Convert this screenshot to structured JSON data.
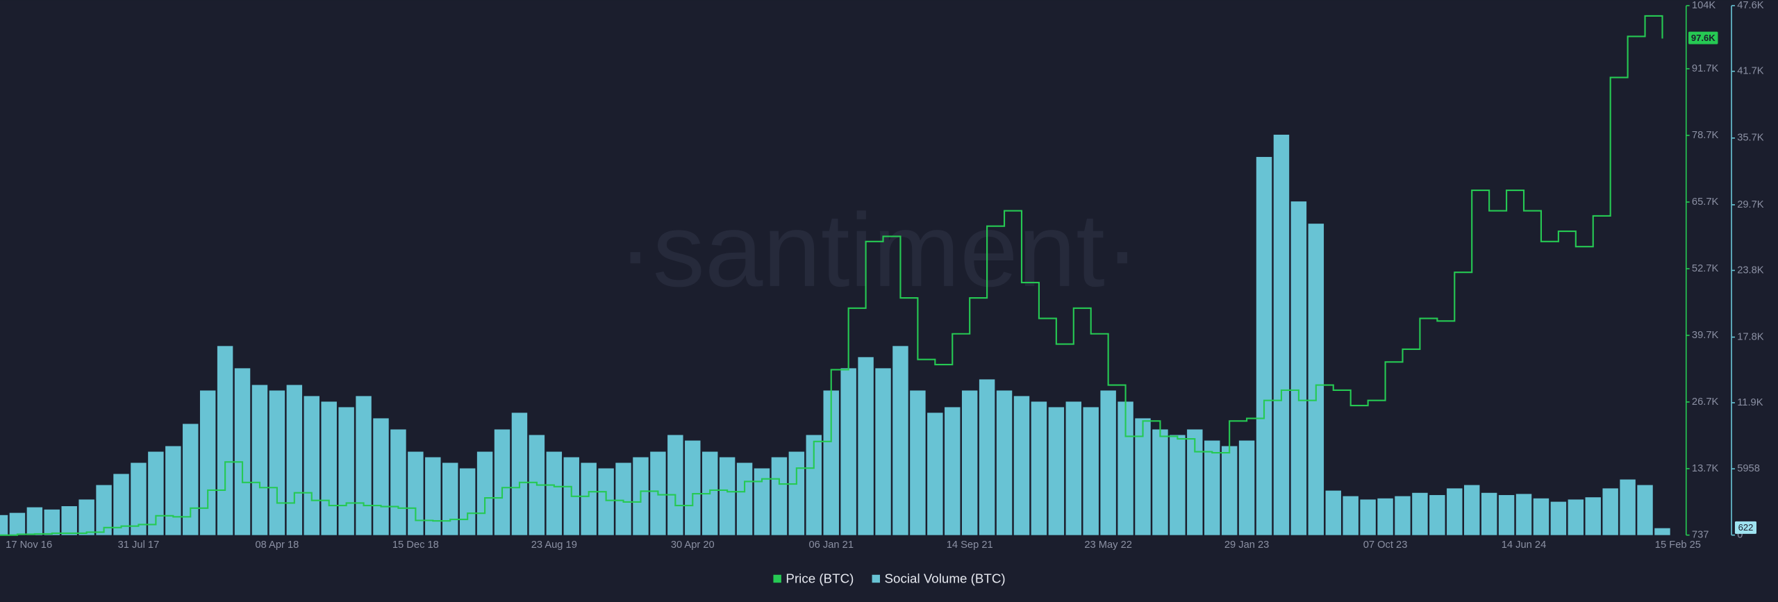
{
  "chart_data": {
    "type": "combo",
    "watermark": "·santiment·",
    "categories": [
      "17 Nov 16",
      null,
      null,
      null,
      null,
      null,
      null,
      null,
      "31 Jul 17",
      null,
      null,
      null,
      null,
      null,
      null,
      null,
      "08 Apr 18",
      null,
      null,
      null,
      null,
      null,
      null,
      null,
      "15 Dec 18",
      null,
      null,
      null,
      null,
      null,
      null,
      null,
      "23 Aug 19",
      null,
      null,
      null,
      null,
      null,
      null,
      null,
      "30 Apr 20",
      null,
      null,
      null,
      null,
      null,
      null,
      null,
      "06 Jan 21",
      null,
      null,
      null,
      null,
      null,
      null,
      null,
      "14 Sep 21",
      null,
      null,
      null,
      null,
      null,
      null,
      null,
      "23 May 22",
      null,
      null,
      null,
      null,
      null,
      null,
      null,
      "29 Jan 23",
      null,
      null,
      null,
      null,
      null,
      null,
      null,
      "07 Oct 23",
      null,
      null,
      null,
      null,
      null,
      null,
      null,
      "14 Jun 24",
      null,
      null,
      null,
      null,
      null,
      null,
      null,
      "15 Feb 25"
    ],
    "series": [
      {
        "name": "Social Volume (BTC)",
        "type": "bar",
        "axis": "y2",
        "color": "#68c3d4",
        "values": [
          1800,
          2000,
          2500,
          2300,
          2600,
          3200,
          4500,
          5500,
          6500,
          7500,
          8000,
          10000,
          13000,
          17000,
          15000,
          13500,
          13000,
          13500,
          12500,
          12000,
          11500,
          12500,
          10500,
          9500,
          7500,
          7000,
          6500,
          6000,
          7500,
          9500,
          11000,
          9000,
          7500,
          7000,
          6500,
          6000,
          6500,
          7000,
          7500,
          9000,
          8500,
          7500,
          7000,
          6500,
          6000,
          7000,
          7500,
          9000,
          13000,
          15000,
          16000,
          15000,
          17000,
          13000,
          11000,
          11500,
          13000,
          14000,
          13000,
          12500,
          12000,
          11500,
          12000,
          11500,
          13000,
          12000,
          10500,
          9500,
          9000,
          9500,
          8500,
          8000,
          8500,
          34000,
          36000,
          30000,
          28000,
          4000,
          3500,
          3200,
          3300,
          3500,
          3800,
          3600,
          4200,
          4500,
          3800,
          3600,
          3700,
          3300,
          3000,
          3200,
          3400,
          4200,
          5000,
          4500,
          622
        ]
      },
      {
        "name": "Price (BTC)",
        "type": "line",
        "color": "#26c953",
        "current_label": "97.6K",
        "values": [
          740,
          900,
          970,
          1100,
          1100,
          1300,
          2200,
          2500,
          2800,
          4500,
          4300,
          6000,
          9500,
          15000,
          11000,
          10000,
          7000,
          9000,
          7500,
          6500,
          7000,
          6500,
          6300,
          6000,
          3600,
          3500,
          3800,
          5000,
          8000,
          10000,
          11000,
          10500,
          10200,
          8300,
          9200,
          7500,
          7200,
          9300,
          8600,
          6500,
          8800,
          9500,
          9200,
          11200,
          11700,
          10700,
          13800,
          19000,
          33000,
          45000,
          58000,
          59000,
          47000,
          35000,
          34000,
          40000,
          47000,
          61000,
          64000,
          50000,
          43000,
          38000,
          45000,
          40000,
          30000,
          20000,
          23000,
          20000,
          19500,
          17000,
          16800,
          23000,
          23500,
          27000,
          29000,
          27000,
          30000,
          29000,
          26000,
          27000,
          34500,
          37000,
          43000,
          42500,
          52000,
          68000,
          64000,
          68000,
          64000,
          58000,
          60000,
          57000,
          63000,
          90000,
          98000,
          102000,
          97600
        ]
      }
    ],
    "ylim": [
      737,
      104000
    ],
    "yticks": [
      737,
      {
        "value": 13700,
        "label": "13.7K"
      },
      {
        "value": 26700,
        "label": "26.7K"
      },
      {
        "value": 39700,
        "label": "39.7K"
      },
      {
        "value": 52700,
        "label": "52.7K"
      },
      {
        "value": 65700,
        "label": "65.7K"
      },
      {
        "value": 78700,
        "label": "78.7K"
      },
      {
        "value": 91700,
        "label": "91.7K"
      },
      {
        "value": 104000,
        "label": "104K"
      }
    ],
    "y2lim": [
      0,
      47600
    ],
    "y2ticks": [
      0,
      5958,
      {
        "value": 11900,
        "label": "11.9K"
      },
      {
        "value": 17800,
        "label": "17.8K"
      },
      {
        "value": 23800,
        "label": "23.8K"
      },
      {
        "value": 29700,
        "label": "29.7K"
      },
      {
        "value": 35700,
        "label": "35.7K"
      },
      {
        "value": 41700,
        "label": "41.7K"
      },
      {
        "value": 47600,
        "label": "47.6K"
      }
    ],
    "grid": false,
    "legend": "bottom"
  }
}
